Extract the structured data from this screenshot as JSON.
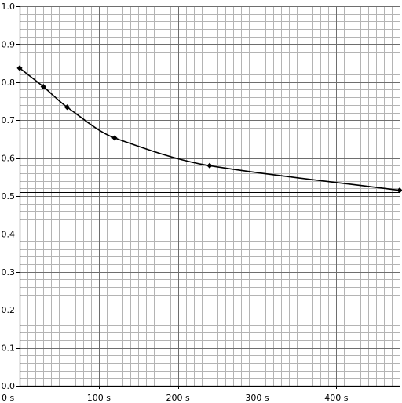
{
  "chart_data": {
    "type": "line",
    "title": "",
    "xlabel": "",
    "ylabel": "",
    "x_unit": "s",
    "xlim": [
      0,
      480
    ],
    "ylim": [
      0,
      1.0
    ],
    "x_ticks": [
      0,
      100,
      200,
      300,
      400
    ],
    "x_tick_labels": [
      "0 s",
      "100 s",
      "200 s",
      "300 s",
      "400 s"
    ],
    "y_ticks": [
      0,
      0.1,
      0.2,
      0.3,
      0.4,
      0.5,
      0.6,
      0.7,
      0.8,
      0.9,
      1.0
    ],
    "y_tick_labels": [
      "0.0",
      "0.1",
      "0.2",
      "0.3",
      "0.4",
      "0.5",
      "0.6",
      "0.7",
      "0.8",
      "0.9",
      "1.0"
    ],
    "grid": true,
    "reference_line_y": 0.51,
    "series": [
      {
        "x": [
          0,
          30,
          60,
          120,
          240,
          480
        ],
        "values": [
          0.837,
          0.788,
          0.734,
          0.653,
          0.58,
          0.515
        ],
        "color": "#000000"
      }
    ]
  }
}
